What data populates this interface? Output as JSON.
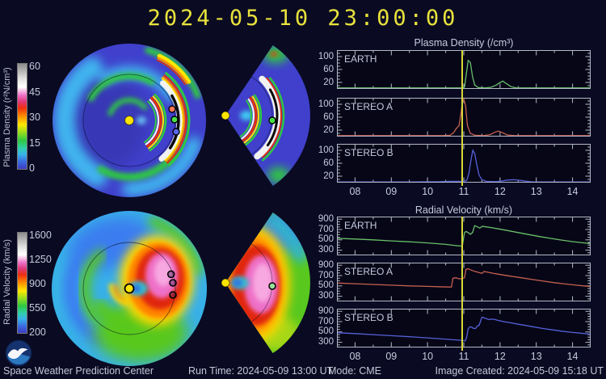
{
  "title": "2024-05-10 23:00:00",
  "colors": {
    "background": "#0a0a23",
    "title": "#e8e23c",
    "frame": "#b4bac8",
    "text": "#c6cbde",
    "now_line": "#d8d838",
    "earth": "#6abf69",
    "stereo_a": "#c7604e",
    "stereo_b": "#5661d8"
  },
  "colorbars": [
    {
      "label": "Plasma Density (r²N/cm³)",
      "ticks": [
        "60",
        "45",
        "30",
        "15",
        "0"
      ]
    },
    {
      "label": "Radial Velocity (km/s)",
      "ticks": [
        "1600",
        "1250",
        "900",
        "550",
        "200"
      ]
    }
  ],
  "footer": {
    "left": "Space Weather Prediction Center",
    "run_time": "Run Time: 2024-05-09 13:00 UT",
    "mode": "Mode: CME",
    "image_created": "Image Created: 2024-05-09 15:18 UT"
  },
  "chart_data": [
    {
      "type": "line",
      "title": "Plasma Density (/cm³)",
      "xlim": [
        7.5,
        14.5
      ],
      "ylim": [
        0,
        120
      ],
      "x_ticks": [
        "08",
        "09",
        "10",
        "11",
        "12",
        "13",
        "14"
      ],
      "y_ticks": [
        20,
        60,
        100
      ],
      "y_minor_step": 10,
      "now_x": 10.96,
      "legend_position": "panel-top-left",
      "grid": false,
      "panels": [
        {
          "name": "EARTH",
          "color": "#6abf69",
          "points": [
            [
              7.5,
              3
            ],
            [
              8.5,
              3
            ],
            [
              9.5,
              3
            ],
            [
              10.5,
              3
            ],
            [
              10.95,
              3
            ],
            [
              11.02,
              6
            ],
            [
              11.08,
              55
            ],
            [
              11.12,
              88
            ],
            [
              11.18,
              82
            ],
            [
              11.24,
              38
            ],
            [
              11.3,
              12
            ],
            [
              11.4,
              4
            ],
            [
              11.6,
              3
            ],
            [
              11.75,
              5
            ],
            [
              11.9,
              12
            ],
            [
              12.0,
              20
            ],
            [
              12.08,
              24
            ],
            [
              12.18,
              16
            ],
            [
              12.3,
              7
            ],
            [
              12.45,
              3
            ],
            [
              13.5,
              3
            ],
            [
              14.5,
              3
            ]
          ]
        },
        {
          "name": "STEREO A",
          "color": "#c7604e",
          "points": [
            [
              7.5,
              3
            ],
            [
              9.0,
              3
            ],
            [
              10.4,
              3
            ],
            [
              10.62,
              4
            ],
            [
              10.72,
              12
            ],
            [
              10.8,
              26
            ],
            [
              10.87,
              34
            ],
            [
              10.92,
              70
            ],
            [
              10.96,
              108
            ],
            [
              11.0,
              115
            ],
            [
              11.05,
              96
            ],
            [
              11.1,
              34
            ],
            [
              11.18,
              10
            ],
            [
              11.3,
              4
            ],
            [
              11.55,
              3
            ],
            [
              11.72,
              6
            ],
            [
              11.85,
              13
            ],
            [
              11.95,
              17
            ],
            [
              12.05,
              13
            ],
            [
              12.2,
              5
            ],
            [
              12.4,
              3
            ],
            [
              13.5,
              3
            ],
            [
              14.5,
              3
            ]
          ]
        },
        {
          "name": "STEREO B",
          "color": "#5661d8",
          "points": [
            [
              7.5,
              2
            ],
            [
              9.5,
              2
            ],
            [
              10.35,
              3
            ],
            [
              10.6,
              4
            ],
            [
              11.0,
              4
            ],
            [
              11.08,
              7
            ],
            [
              11.14,
              28
            ],
            [
              11.2,
              72
            ],
            [
              11.25,
              100
            ],
            [
              11.3,
              90
            ],
            [
              11.36,
              55
            ],
            [
              11.42,
              24
            ],
            [
              11.5,
              9
            ],
            [
              11.62,
              4
            ],
            [
              11.9,
              3
            ],
            [
              12.05,
              5
            ],
            [
              12.2,
              8
            ],
            [
              12.4,
              9
            ],
            [
              12.55,
              7
            ],
            [
              12.75,
              4
            ],
            [
              12.9,
              2
            ],
            [
              14.0,
              2
            ],
            [
              14.5,
              2
            ]
          ]
        }
      ]
    },
    {
      "type": "line",
      "title": "Radial Velocity (km/s)",
      "xlim": [
        7.5,
        14.5
      ],
      "ylim": [
        200,
        950
      ],
      "x_ticks": [
        "08",
        "09",
        "10",
        "11",
        "12",
        "13",
        "14"
      ],
      "y_ticks": [
        300,
        500,
        700,
        900
      ],
      "y_minor_step": 50,
      "now_x": 10.96,
      "legend_position": "panel-top-left",
      "grid": false,
      "panels": [
        {
          "name": "EARTH",
          "color": "#6abf69",
          "points": [
            [
              7.5,
              530
            ],
            [
              8.0,
              515
            ],
            [
              8.5,
              500
            ],
            [
              9.0,
              480
            ],
            [
              9.5,
              462
            ],
            [
              10.0,
              440
            ],
            [
              10.5,
              412
            ],
            [
              10.8,
              388
            ],
            [
              10.96,
              376
            ],
            [
              11.0,
              560
            ],
            [
              11.02,
              640
            ],
            [
              11.06,
              662
            ],
            [
              11.12,
              640
            ],
            [
              11.18,
              608
            ],
            [
              11.24,
              640
            ],
            [
              11.3,
              775
            ],
            [
              11.36,
              758
            ],
            [
              11.44,
              726
            ],
            [
              11.52,
              762
            ],
            [
              11.6,
              752
            ],
            [
              11.75,
              738
            ],
            [
              11.95,
              712
            ],
            [
              12.2,
              682
            ],
            [
              12.5,
              640
            ],
            [
              12.8,
              602
            ],
            [
              13.1,
              562
            ],
            [
              13.4,
              528
            ],
            [
              13.7,
              496
            ],
            [
              14.0,
              466
            ],
            [
              14.3,
              442
            ],
            [
              14.5,
              428
            ]
          ]
        },
        {
          "name": "STEREO A",
          "color": "#c7604e",
          "points": [
            [
              7.5,
              556
            ],
            [
              8.0,
              542
            ],
            [
              8.5,
              528
            ],
            [
              9.0,
              514
            ],
            [
              9.5,
              500
            ],
            [
              10.0,
              490
            ],
            [
              10.3,
              484
            ],
            [
              10.6,
              478
            ],
            [
              10.66,
              480
            ],
            [
              10.7,
              648
            ],
            [
              10.78,
              658
            ],
            [
              10.88,
              636
            ],
            [
              10.96,
              642
            ],
            [
              11.02,
              660
            ],
            [
              11.06,
              822
            ],
            [
              11.12,
              832
            ],
            [
              11.2,
              806
            ],
            [
              11.3,
              782
            ],
            [
              11.42,
              758
            ],
            [
              11.5,
              742
            ],
            [
              11.56,
              778
            ],
            [
              11.64,
              768
            ],
            [
              11.8,
              746
            ],
            [
              12.0,
              720
            ],
            [
              12.3,
              688
            ],
            [
              12.6,
              656
            ],
            [
              12.9,
              624
            ],
            [
              13.2,
              592
            ],
            [
              13.5,
              562
            ],
            [
              13.8,
              538
            ],
            [
              14.1,
              514
            ],
            [
              14.4,
              494
            ],
            [
              14.5,
              488
            ]
          ]
        },
        {
          "name": "STEREO B",
          "color": "#5661d8",
          "points": [
            [
              7.5,
              486
            ],
            [
              8.0,
              468
            ],
            [
              8.5,
              448
            ],
            [
              9.0,
              428
            ],
            [
              9.5,
              408
            ],
            [
              10.0,
              386
            ],
            [
              10.4,
              366
            ],
            [
              10.7,
              350
            ],
            [
              10.9,
              340
            ],
            [
              11.0,
              332
            ],
            [
              11.04,
              330
            ],
            [
              11.08,
              400
            ],
            [
              11.12,
              560
            ],
            [
              11.16,
              596
            ],
            [
              11.2,
              600
            ],
            [
              11.26,
              572
            ],
            [
              11.32,
              566
            ],
            [
              11.38,
              618
            ],
            [
              11.42,
              624
            ],
            [
              11.46,
              700
            ],
            [
              11.5,
              786
            ],
            [
              11.56,
              774
            ],
            [
              11.62,
              756
            ],
            [
              11.7,
              740
            ],
            [
              11.78,
              748
            ],
            [
              11.84,
              746
            ],
            [
              11.95,
              724
            ],
            [
              12.1,
              700
            ],
            [
              12.3,
              676
            ],
            [
              12.5,
              650
            ],
            [
              12.7,
              626
            ],
            [
              12.95,
              596
            ],
            [
              13.2,
              566
            ],
            [
              13.45,
              540
            ],
            [
              13.7,
              516
            ],
            [
              13.95,
              496
            ],
            [
              14.2,
              478
            ],
            [
              14.5,
              458
            ]
          ]
        }
      ]
    }
  ]
}
